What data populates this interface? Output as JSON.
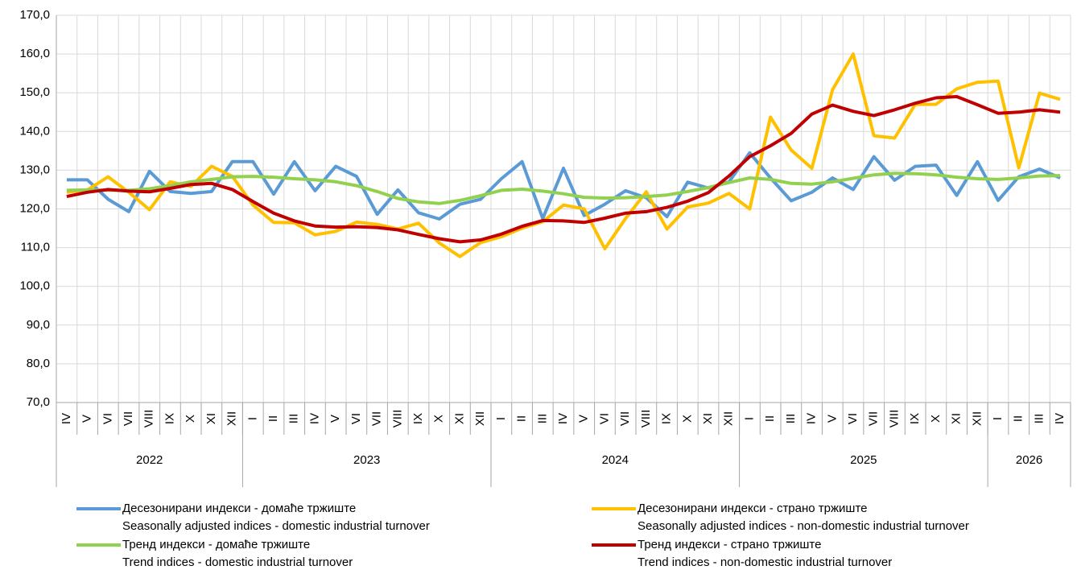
{
  "chart_data": {
    "type": "line",
    "categories": [
      "IV",
      "V",
      "VI",
      "VII",
      "VIII",
      "IX",
      "X",
      "XI",
      "XII",
      "I",
      "II",
      "III",
      "IV",
      "V",
      "VI",
      "VII",
      "VIII",
      "IX",
      "X",
      "XI",
      "XII",
      "I",
      "II",
      "III",
      "IV",
      "V",
      "VI",
      "VII",
      "VIII",
      "IX",
      "X",
      "XI",
      "XII",
      "I",
      "II",
      "III",
      "IV",
      "V",
      "VI",
      "VII",
      "VIII",
      "IX",
      "X",
      "XI",
      "XII",
      "I",
      "II",
      "III",
      "IV"
    ],
    "year_groups": [
      {
        "label": "2022",
        "count": 9
      },
      {
        "label": "2023",
        "count": 12
      },
      {
        "label": "2024",
        "count": 12
      },
      {
        "label": "2025",
        "count": 12
      },
      {
        "label": "2026",
        "count": 4
      }
    ],
    "ylim": [
      70,
      170
    ],
    "yticks": [
      {
        "value": 70,
        "label": "70,0"
      },
      {
        "value": 80,
        "label": "80,0"
      },
      {
        "value": 90,
        "label": "90,0"
      },
      {
        "value": 100,
        "label": "100,0"
      },
      {
        "value": 110,
        "label": "110,0"
      },
      {
        "value": 120,
        "label": "120,0"
      },
      {
        "value": 130,
        "label": "130,0"
      },
      {
        "value": 140,
        "label": "140,0"
      },
      {
        "value": 150,
        "label": "150,0"
      },
      {
        "value": 160,
        "label": "160,0"
      },
      {
        "value": 170,
        "label": "170,0"
      }
    ],
    "grid": true,
    "series": [
      {
        "name": "Десезонирани индекси - домаће тржиште",
        "name_en": "Seasonally adjusted indices - domestic industrial turnover",
        "color": "#5b9bd5",
        "values": [
          127.5,
          127.5,
          122.5,
          119.3,
          129.7,
          124.5,
          124.0,
          124.5,
          132.2,
          132.2,
          123.8,
          132.2,
          124.7,
          131.0,
          128.4,
          118.6,
          124.9,
          119.0,
          117.4,
          121.2,
          122.5,
          127.8,
          132.2,
          117.5,
          130.5,
          118.3,
          121.2,
          124.7,
          122.9,
          118.0,
          126.9,
          125.4,
          127.0,
          134.5,
          128.0,
          122.1,
          124.3,
          128.0,
          125.0,
          133.5,
          127.4,
          131.0,
          131.3,
          123.5,
          132.2,
          122.2,
          128.3,
          130.3,
          128.0
        ]
      },
      {
        "name": "Десезонирани индекси - страно тржиште",
        "name_en": "Seasonally adjusted indices - non-domestic industrial turnover",
        "color": "#ffc000",
        "values": [
          124.3,
          124.9,
          128.3,
          124.3,
          119.8,
          127.0,
          125.8,
          131.0,
          128.4,
          121.0,
          116.5,
          116.4,
          113.3,
          114.2,
          116.6,
          116.0,
          114.8,
          116.3,
          111.2,
          107.7,
          111.3,
          112.8,
          115.0,
          116.7,
          121.0,
          120.0,
          109.7,
          117.5,
          124.4,
          114.8,
          120.5,
          121.5,
          124.0,
          120.0,
          143.7,
          135.2,
          130.5,
          150.8,
          160.0,
          138.9,
          138.3,
          147.0,
          147.0,
          151.0,
          152.7,
          153.0,
          130.6,
          149.9,
          148.3
        ]
      },
      {
        "name": "Тренд индекси - домаће тржиште",
        "name_en": "Trend indices - domestic industrial turnover",
        "color": "#92d050",
        "values": [
          124.8,
          124.9,
          124.8,
          124.8,
          125.2,
          126.0,
          127.0,
          127.6,
          128.3,
          128.4,
          128.2,
          127.8,
          127.5,
          127.0,
          126.0,
          124.5,
          122.7,
          121.8,
          121.4,
          122.2,
          123.4,
          124.8,
          125.1,
          124.6,
          123.9,
          123.0,
          122.8,
          122.9,
          123.2,
          123.6,
          124.5,
          125.5,
          126.8,
          128.0,
          127.6,
          126.6,
          126.4,
          127.0,
          127.9,
          128.8,
          129.2,
          129.1,
          128.8,
          128.2,
          127.8,
          127.6,
          128.0,
          128.5,
          128.6
        ]
      },
      {
        "name": "Тренд индекси - страно тржиште",
        "name_en": "Trend indices - non-domestic industrial turnover",
        "color": "#c00000",
        "values": [
          123.2,
          124.3,
          125.0,
          124.6,
          124.4,
          125.3,
          126.3,
          126.6,
          125.0,
          121.9,
          118.9,
          116.9,
          115.6,
          115.3,
          115.4,
          115.2,
          114.6,
          113.4,
          112.3,
          111.5,
          112.0,
          113.5,
          115.5,
          117.0,
          116.9,
          116.5,
          117.6,
          118.9,
          119.3,
          120.4,
          122.0,
          124.2,
          128.5,
          133.5,
          136.3,
          139.5,
          144.5,
          146.8,
          145.2,
          144.1,
          145.6,
          147.3,
          148.7,
          149.0,
          146.9,
          144.7,
          145.0,
          145.6,
          145.0
        ]
      }
    ]
  }
}
